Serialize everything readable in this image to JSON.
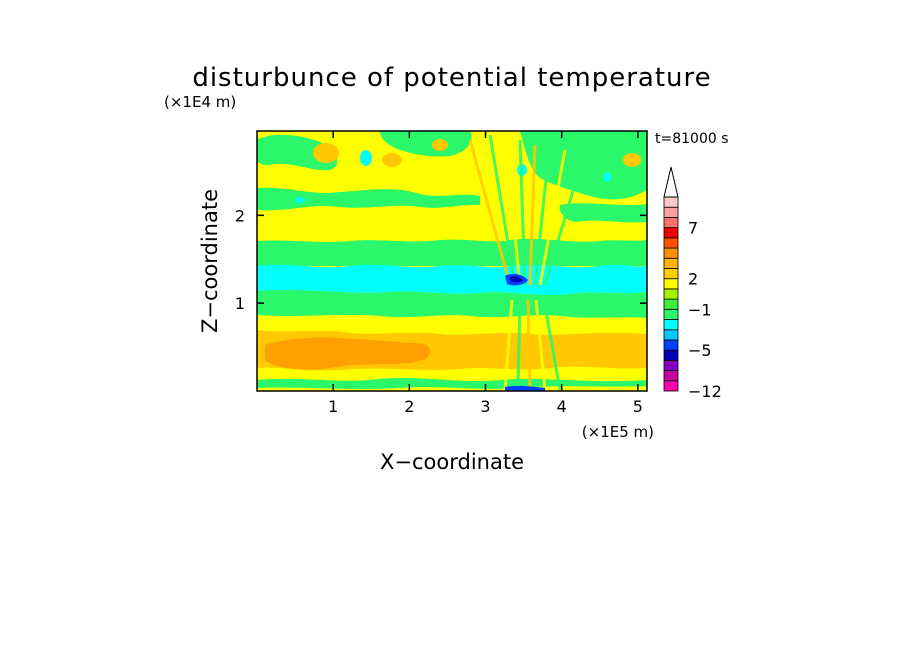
{
  "chart_data": {
    "type": "heatmap",
    "title": "disturbunce of potential temperature",
    "xlabel": "X−coordinate",
    "ylabel": "Z−coordinate",
    "x_unit": "(×1E5 m)",
    "y_unit": "(×1E4 m)",
    "time_label": "t=81000 s",
    "xlim": [
      0,
      5.12
    ],
    "ylim": [
      0,
      2.96
    ],
    "x_ticks": [
      1,
      2,
      3,
      4,
      5
    ],
    "y_ticks": [
      1,
      2
    ],
    "x_tick_labels": [
      "1",
      "2",
      "3",
      "4",
      "5"
    ],
    "y_tick_labels": [
      "1",
      "2"
    ],
    "grid": false,
    "colorbar": {
      "levels": [
        -12,
        -10,
        -8,
        -6,
        -5,
        -4,
        -3,
        -2,
        -1,
        0,
        1,
        2,
        3,
        4,
        5,
        6,
        7,
        8,
        9,
        10
      ],
      "colors": [
        "#ff00b0",
        "#c800a0",
        "#8800c0",
        "#0000b4",
        "#0040ff",
        "#00c8ff",
        "#00ffff",
        "#2af76a",
        "#3cf03c",
        "#a8f000",
        "#ffff00",
        "#ffd000",
        "#ffb000",
        "#ff9000",
        "#ff5000",
        "#f00000",
        "#ff7070",
        "#ffa0a0",
        "#ffc8c8"
      ],
      "labels": [
        "−12",
        "−5",
        "−1",
        "2",
        "7"
      ],
      "label_values": [
        -12,
        -5,
        -1,
        2,
        7
      ],
      "extend": "max"
    },
    "bands": [
      {
        "z": [
          0.0,
          0.06
        ],
        "level": "yellow"
      },
      {
        "z": [
          0.06,
          0.12
        ],
        "level": "green"
      },
      {
        "z": [
          0.12,
          0.22
        ],
        "level": "yellow"
      },
      {
        "z": [
          0.22,
          0.62
        ],
        "level": "orange-yellow"
      },
      {
        "z": [
          0.62,
          0.8
        ],
        "level": "yellow"
      },
      {
        "z": [
          0.8,
          0.96
        ],
        "level": "green"
      },
      {
        "z": [
          0.96,
          1.36
        ],
        "level": "cyan"
      },
      {
        "z": [
          1.36,
          1.52
        ],
        "level": "green"
      },
      {
        "z": [
          1.52,
          2.16
        ],
        "level": "yellow"
      },
      {
        "z": [
          2.16,
          2.5
        ],
        "level": "green"
      },
      {
        "z": [
          2.5,
          2.96
        ],
        "level": "yellow"
      }
    ]
  }
}
